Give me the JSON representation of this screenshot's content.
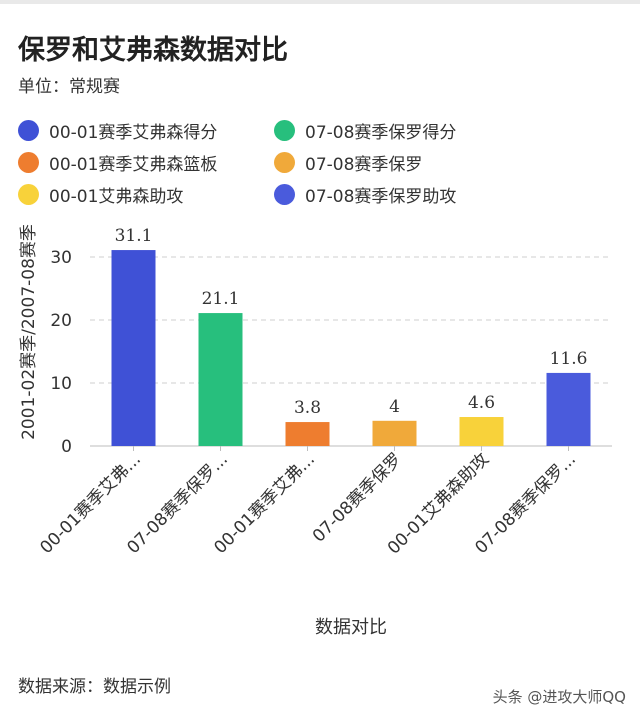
{
  "header": {
    "title": "保罗和艾弗森数据对比",
    "subtitle": "单位：常规赛"
  },
  "footer": {
    "source": "数据来源：数据示例",
    "watermark": "头条 @进攻大师QQ"
  },
  "chart_data": {
    "type": "bar",
    "categories": [
      "00-01赛季艾弗...",
      "07-08赛季保罗...",
      "00-01赛季艾弗...",
      "07-08赛季保罗",
      "00-01艾弗森助攻",
      "07-08赛季保罗..."
    ],
    "values": [
      31.1,
      21.1,
      3.8,
      4,
      4.6,
      11.6
    ],
    "value_labels": [
      "31.1",
      "21.1",
      "3.8",
      "4",
      "4.6",
      "11.6"
    ],
    "colors": [
      "#3f51d6",
      "#27bf7d",
      "#ee7d2f",
      "#f0a93a",
      "#f8d23a",
      "#4a5bdc"
    ],
    "legend": [
      {
        "label": "00-01赛季艾弗森得分",
        "color": "#3f51d6"
      },
      {
        "label": "07-08赛季保罗得分",
        "color": "#27bf7d"
      },
      {
        "label": "00-01赛季艾弗森篮板",
        "color": "#ee7d2f"
      },
      {
        "label": "07-08赛季保罗",
        "color": "#f0a93a"
      },
      {
        "label": "00-01艾弗森助攻",
        "color": "#f8d23a"
      },
      {
        "label": "07-08赛季保罗助攻",
        "color": "#4a5bdc"
      }
    ],
    "xlabel": "数据对比",
    "ylabel": "2001-02赛季/2007-08赛季",
    "ylim": [
      0,
      30
    ],
    "yticks": [
      0,
      10,
      20,
      30
    ],
    "grid": true,
    "legend_position": "top"
  }
}
